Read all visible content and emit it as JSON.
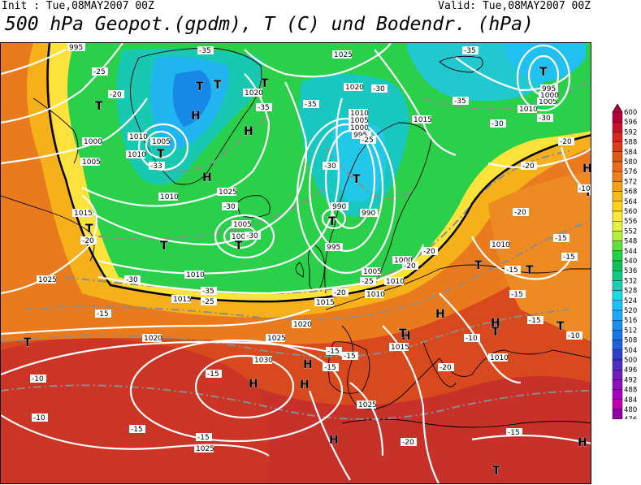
{
  "header": {
    "init_text": "Init : Tue,08MAY2007 00Z",
    "valid_text": "Valid: Tue,08MAY2007 00Z",
    "title": "500 hPa Geopot.(gpdm), T (C) und Bodendr. (hPa)"
  },
  "legend": {
    "levels": [
      "600",
      "596",
      "592",
      "588",
      "584",
      "580",
      "576",
      "572",
      "568",
      "564",
      "560",
      "556",
      "552",
      "548",
      "544",
      "540",
      "536",
      "532",
      "528",
      "524",
      "520",
      "516",
      "512",
      "508",
      "504",
      "500",
      "496",
      "492",
      "488",
      "484",
      "480",
      "476"
    ],
    "colors": [
      "#b2003a",
      "#c8102a",
      "#d02a20",
      "#d8401a",
      "#e05818",
      "#e86a1c",
      "#ee8020",
      "#f4a018",
      "#f8bc18",
      "#fcd418",
      "#fce83a",
      "#e8f040",
      "#b8f040",
      "#60e040",
      "#20d040",
      "#10c058",
      "#10c880",
      "#18d0b0",
      "#20d8e0",
      "#20c0f8",
      "#20a8f8",
      "#1890f0",
      "#1878e8",
      "#2060d8",
      "#3040c8",
      "#5030c0",
      "#7020b8",
      "#9010c0",
      "#a800c0",
      "#c000b0",
      "#9000a0",
      "#600080"
    ]
  },
  "map_labels": {
    "highs": [
      "H",
      "H",
      "H",
      "H",
      "H",
      "H",
      "H",
      "H",
      "H",
      "H",
      "H",
      "H"
    ],
    "lows": [
      "T",
      "T",
      "T",
      "T",
      "T",
      "T",
      "T",
      "T",
      "T",
      "T",
      "T",
      "T",
      "T",
      "T",
      "T",
      "T",
      "T",
      "T",
      "T"
    ],
    "pressure_labels": [
      "995",
      "1025",
      "1020",
      "1010",
      "1005",
      "1000",
      "1010",
      "1010",
      "1005",
      "1000",
      "1020",
      "1015",
      "1010",
      "1005",
      "1010",
      "1000",
      "995",
      "990",
      "990",
      "995",
      "1005",
      "1005",
      "1000",
      "1010",
      "1015",
      "1015",
      "1025",
      "1020",
      "1020",
      "1025",
      "1030",
      "1025",
      "1025",
      "1010",
      "1015",
      "1010",
      "1005",
      "995",
      "1000",
      "1010",
      "1010",
      "1025",
      "1015"
    ],
    "temp_labels": [
      "-25",
      "-20",
      "-35",
      "-35",
      "-35",
      "-30",
      "-30",
      "-30",
      "-33",
      "-35",
      "-35",
      "-30",
      "-25",
      "-30",
      "-30",
      "-30",
      "-20",
      "-20",
      "-25",
      "-20",
      "-35",
      "-15",
      "-15",
      "-15",
      "-15",
      "-15",
      "-20",
      "-15",
      "-15",
      "-15",
      "-10",
      "-10",
      "-10",
      "-15",
      "-15",
      "-10",
      "-20",
      "-20",
      "-20",
      "-20",
      "-10",
      "-25",
      "-20",
      "-15",
      "-15",
      "-15"
    ]
  }
}
